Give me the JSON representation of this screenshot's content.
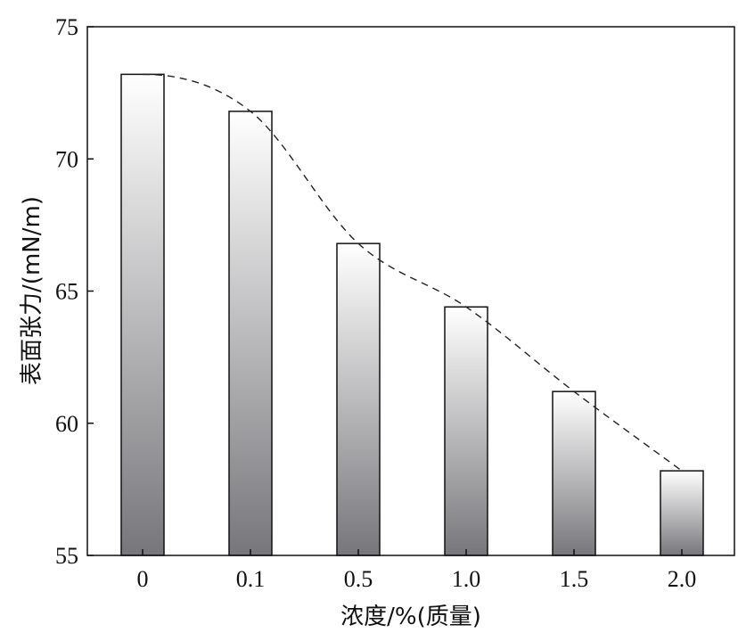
{
  "chart_data": {
    "type": "bar",
    "categories": [
      "0",
      "0.1",
      "0.5",
      "1.0",
      "1.5",
      "2.0"
    ],
    "values": [
      73.2,
      71.8,
      66.8,
      64.4,
      61.2,
      58.2
    ],
    "title": "",
    "xlabel": "浓度/%(质量)",
    "ylabel": "表面张力/(mN/m)",
    "ylim": [
      55,
      75
    ],
    "yticks": [
      "55",
      "60",
      "65",
      "70",
      "75"
    ],
    "trend_line": "dashed smooth curve through bar tops",
    "grid": false,
    "legend": "none",
    "colors": {
      "bar_top": "#ffffff",
      "bar_bottom": "#77777b",
      "stroke": "#111111"
    }
  }
}
